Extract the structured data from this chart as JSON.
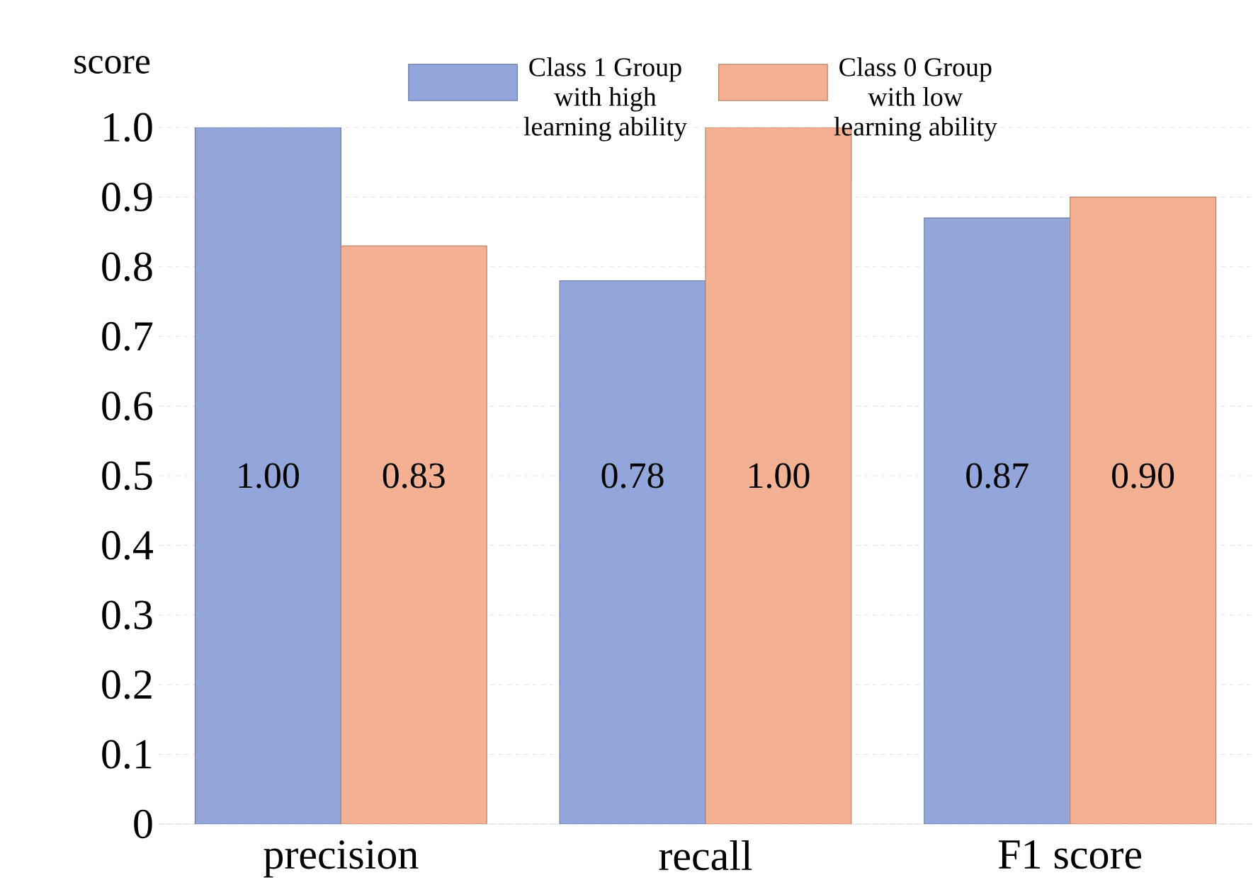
{
  "chart_data": {
    "type": "bar",
    "ylabel": "score",
    "categories": [
      "precision",
      "recall",
      "F1 score"
    ],
    "series": [
      {
        "name": "Class 1 Group with high learning ability",
        "color": "#92a6dc",
        "values": [
          1.0,
          0.78,
          0.87
        ],
        "value_labels": [
          "1.00",
          "0.78",
          "0.87"
        ]
      },
      {
        "name": "Class 0 Group with low learning ability",
        "color": "#f4b092",
        "values": [
          0.83,
          1.0,
          0.9
        ],
        "value_labels": [
          "0.83",
          "1.00",
          "0.90"
        ]
      }
    ],
    "ylim": [
      0,
      1
    ],
    "yticks": [
      {
        "value": 0,
        "label": "0"
      },
      0.1,
      0.2,
      0.3,
      0.4,
      0.5,
      0.6,
      0.7,
      0.8,
      0.9,
      {
        "value": 1,
        "label": "1.0"
      }
    ],
    "grid": "y",
    "legend": "top"
  }
}
